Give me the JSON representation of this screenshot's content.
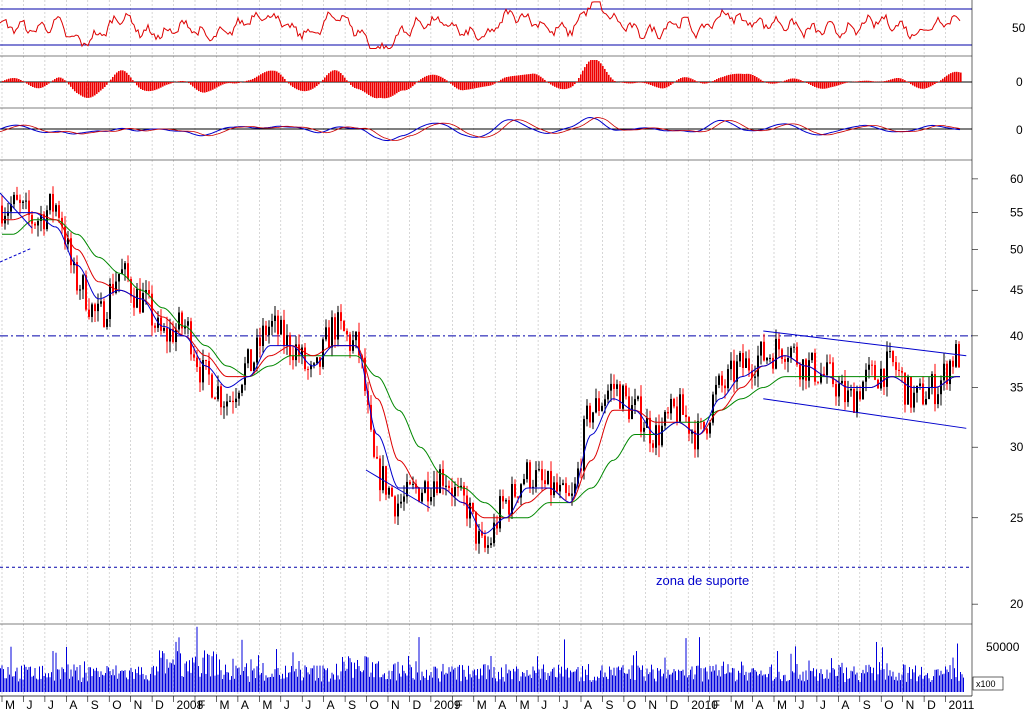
{
  "chart_data": [
    {
      "type": "line",
      "title": "",
      "ylabel": "",
      "yticks": [
        "50"
      ],
      "ylim": [
        20,
        80
      ],
      "reference_lines": [
        70,
        30
      ],
      "colors": {
        "line": "#dd0000",
        "ref": "#0000aa"
      }
    },
    {
      "type": "bar",
      "title": "",
      "yticks": [
        "0"
      ],
      "colors": {
        "bar": "#ee0000"
      }
    },
    {
      "type": "line",
      "title": "",
      "yticks": [
        "0"
      ],
      "colors": {
        "line1": "#0000cc",
        "line2": "#cc0000"
      }
    },
    {
      "type": "candlestick",
      "title": "",
      "xlabel": "",
      "ylabel": "",
      "scale": "log",
      "ylim": [
        19,
        63
      ],
      "yticks": [
        "60",
        "55",
        "50",
        "45",
        "40",
        "35",
        "30",
        "25",
        "20"
      ],
      "series": [
        {
          "name": "",
          "kind": "close",
          "x": [
            "2007-05",
            "2007-06",
            "2007-07",
            "2007-08",
            "2007-09",
            "2007-10",
            "2007-11",
            "2007-12",
            "2008-01",
            "2008-02",
            "2008-03",
            "2008-04",
            "2008-05",
            "2008-06",
            "2008-07",
            "2008-08",
            "2008-09",
            "2008-10",
            "2008-11",
            "2008-12",
            "2009-01",
            "2009-02",
            "2009-03",
            "2009-04",
            "2009-05",
            "2009-06",
            "2009-07",
            "2009-08",
            "2009-09",
            "2009-10",
            "2009-11",
            "2009-12",
            "2010-01",
            "2010-02",
            "2010-03",
            "2010-04",
            "2010-05",
            "2010-06",
            "2010-07",
            "2010-08",
            "2010-09",
            "2010-10",
            "2010-11",
            "2010-12",
            "2011-01"
          ],
          "values": [
            56,
            54,
            56,
            46,
            42,
            47,
            44,
            40,
            41,
            36,
            34,
            37,
            41,
            39,
            36,
            41,
            39,
            28,
            26,
            27,
            28,
            26,
            23,
            26,
            28,
            27,
            26,
            33,
            35,
            33,
            31,
            33,
            31,
            35,
            37,
            38,
            39,
            37,
            36,
            34,
            36,
            37,
            34,
            35,
            38
          ]
        },
        {
          "name": "",
          "kind": "ma_short",
          "values": [
            55,
            55,
            53,
            48,
            44,
            45,
            44,
            41,
            40,
            37,
            35,
            36,
            39,
            39,
            37,
            39,
            39,
            31,
            27,
            27,
            27,
            26,
            24,
            25,
            27,
            27,
            26,
            31,
            34,
            33,
            31,
            32,
            31,
            34,
            36,
            37,
            38,
            37,
            36,
            35,
            35,
            36,
            35,
            35,
            36
          ]
        },
        {
          "name": "",
          "kind": "ma_medium",
          "values": [
            54,
            55,
            54,
            50,
            46,
            45,
            44,
            42,
            40,
            38,
            36,
            36,
            38,
            39,
            38,
            39,
            39,
            34,
            29,
            27,
            27,
            26,
            25,
            25,
            26,
            27,
            26,
            29,
            33,
            33,
            32,
            32,
            31,
            33,
            35,
            37,
            38,
            37,
            36,
            35,
            35,
            36,
            35,
            35,
            36
          ]
        },
        {
          "name": "",
          "kind": "ma_long",
          "values": [
            52,
            54,
            54,
            52,
            49,
            47,
            45,
            43,
            41,
            39,
            37,
            36,
            37,
            38,
            38,
            38,
            38,
            36,
            33,
            30,
            28,
            27,
            26,
            25,
            25,
            26,
            26,
            27,
            29,
            31,
            31,
            32,
            32,
            33,
            34,
            35,
            36,
            36,
            36,
            36,
            36,
            36,
            36,
            36,
            36
          ]
        }
      ],
      "support_level": 22,
      "resistance_level": 40,
      "annotations": [
        {
          "text": "zona de suporte"
        }
      ],
      "channel": {
        "upper": [
          [
            "2010-04",
            40.5
          ],
          [
            "2011-01",
            38
          ]
        ],
        "lower": [
          [
            "2010-04",
            34
          ],
          [
            "2011-01",
            31.5
          ]
        ]
      },
      "colors": {
        "candle_up": "#000000",
        "candle_down": "#ff0000",
        "ma_short": "#0000cc",
        "ma_medium": "#dd0000",
        "ma_long": "#008800",
        "level": "#0000aa"
      }
    },
    {
      "type": "bar",
      "title": "",
      "yticks": [
        "50000"
      ],
      "unit": "x100",
      "colors": {
        "bar": "#0000dd"
      }
    }
  ],
  "x_axis": {
    "month_labels": [
      "M",
      "J",
      "J",
      "A",
      "S",
      "O",
      "N",
      "D",
      "2008",
      "F",
      "M",
      "A",
      "M",
      "J",
      "J",
      "A",
      "S",
      "O",
      "N",
      "D",
      "2009",
      "F",
      "M",
      "A",
      "M",
      "J",
      "J",
      "A",
      "S",
      "O",
      "N",
      "D",
      "2010",
      "F",
      "M",
      "A",
      "M",
      "J",
      "J",
      "A",
      "S",
      "O",
      "N",
      "D",
      "2011"
    ]
  }
}
